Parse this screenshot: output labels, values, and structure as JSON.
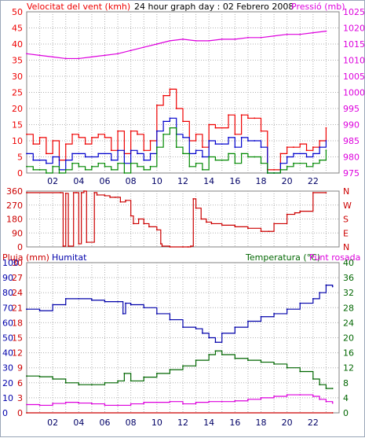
{
  "colors": {
    "wind": "#ee0000",
    "wind_avg": "#0000cc",
    "wind_green": "#008800",
    "pressure": "#dd00dd",
    "direction": "#cc0000",
    "rain": "#cc0000",
    "humidity": "#0000aa",
    "temperature": "#006600",
    "dewpoint": "#dd00dd",
    "grid": "#b0b0b0",
    "frame": "#808080"
  },
  "chart_data": [
    {
      "type": "line",
      "title": "24 hour graph day : 02 Febrero 2008",
      "ylabel": "Velocitat del vent (kmh)",
      "ylabel_right": "Pressió (mb)",
      "y_ticks_left": [
        "50",
        "45",
        "40",
        "35",
        "30",
        "25",
        "20",
        "15",
        "10",
        "5",
        "0"
      ],
      "y_ticks_right": [
        "1025",
        "1020",
        "1015",
        "1010",
        "1005",
        "1000",
        "995",
        "990",
        "985",
        "980",
        "975"
      ],
      "x_ticks": [
        "02",
        "04",
        "06",
        "08",
        "10",
        "12",
        "14",
        "16",
        "18",
        "20",
        "22"
      ],
      "ylim": [
        0,
        50
      ],
      "ylim_right": [
        975,
        1025
      ],
      "xlim": [
        0,
        24
      ],
      "grid": true,
      "series": [
        {
          "key": "wind_gust",
          "axis": "left",
          "x": [
            0,
            0.5,
            1,
            1.5,
            2,
            2.5,
            3,
            3.5,
            4,
            4.5,
            5,
            5.5,
            6,
            6.5,
            7,
            7.5,
            8,
            8.5,
            9,
            9.5,
            10,
            10.5,
            11,
            11.5,
            12,
            12.5,
            13,
            13.5,
            14,
            14.5,
            15,
            15.5,
            16,
            16.5,
            17,
            17.5,
            18,
            18.5,
            19,
            19.5,
            20,
            20.5,
            21,
            21.5,
            22,
            22.5,
            23
          ],
          "values": [
            12,
            9,
            11,
            6,
            10,
            4,
            9,
            12,
            11,
            9,
            11,
            12,
            11,
            7,
            13,
            6,
            13,
            12,
            7,
            10,
            21,
            24,
            26,
            20,
            16,
            10,
            12,
            8,
            15,
            14,
            14,
            18,
            12,
            18,
            17,
            17,
            13,
            1,
            1,
            6,
            8,
            8,
            9,
            7,
            8,
            10,
            14
          ]
        },
        {
          "key": "wind_avg",
          "axis": "left",
          "x": [
            0,
            0.5,
            1,
            1.5,
            2,
            2.5,
            3,
            3.5,
            4,
            4.5,
            5,
            5.5,
            6,
            6.5,
            7,
            7.5,
            8,
            8.5,
            9,
            9.5,
            10,
            10.5,
            11,
            11.5,
            12,
            12.5,
            13,
            13.5,
            14,
            14.5,
            15,
            15.5,
            16,
            16.5,
            17,
            17.5,
            18,
            18.5,
            19,
            19.5,
            20,
            20.5,
            21,
            21.5,
            22,
            22.5,
            23
          ],
          "values": [
            6,
            4,
            4,
            3,
            5,
            1,
            4,
            6,
            6,
            5,
            5,
            6,
            6,
            4,
            7,
            3,
            7,
            6,
            4,
            6,
            13,
            16,
            17,
            12,
            11,
            6,
            7,
            5,
            10,
            9,
            9,
            11,
            8,
            11,
            10,
            10,
            8,
            0,
            0,
            3,
            5,
            6,
            6,
            5,
            6,
            8,
            10
          ]
        },
        {
          "key": "wind_green",
          "axis": "left",
          "x": [
            0,
            0.5,
            1,
            1.5,
            2,
            2.5,
            3,
            3.5,
            4,
            4.5,
            5,
            5.5,
            6,
            6.5,
            7,
            7.5,
            8,
            8.5,
            9,
            9.5,
            10,
            10.5,
            11,
            11.5,
            12,
            12.5,
            13,
            13.5,
            14,
            14.5,
            15,
            15.5,
            16,
            16.5,
            17,
            17.5,
            18,
            18.5,
            19,
            19.5,
            20,
            20.5,
            21,
            21.5,
            22,
            22.5,
            23
          ],
          "values": [
            2,
            1,
            1,
            0,
            2,
            0,
            1,
            3,
            2,
            1,
            2,
            3,
            2,
            1,
            3,
            0,
            3,
            2,
            1,
            2,
            8,
            12,
            14,
            8,
            6,
            2,
            3,
            1,
            5,
            4,
            4,
            6,
            3,
            6,
            5,
            5,
            3,
            0,
            0,
            1,
            2,
            3,
            3,
            2,
            3,
            4,
            7
          ]
        },
        {
          "key": "pressure",
          "axis": "right",
          "x": [
            0,
            1,
            2,
            3,
            4,
            5,
            6,
            7,
            8,
            9,
            10,
            11,
            12,
            13,
            14,
            15,
            16,
            17,
            18,
            19,
            20,
            21,
            22,
            23
          ],
          "values": [
            1012,
            1011.5,
            1011,
            1010.5,
            1010.5,
            1011,
            1011.5,
            1012,
            1013,
            1014,
            1015,
            1016,
            1016.5,
            1016,
            1016,
            1016.5,
            1016.5,
            1017,
            1017,
            1017.5,
            1018,
            1018,
            1018.5,
            1019
          ]
        }
      ]
    },
    {
      "type": "line",
      "y_ticks_left": [
        "360",
        "270",
        "180",
        "90",
        "0"
      ],
      "y_ticks_right": [
        "N",
        "W",
        "S",
        "E",
        "N"
      ],
      "ylim": [
        0,
        360
      ],
      "xlim": [
        0,
        24
      ],
      "grid": true,
      "series": [
        {
          "key": "direction",
          "axis": "left",
          "x": [
            0,
            2.6,
            2.8,
            3.0,
            3.2,
            3.6,
            3.8,
            4.0,
            4.2,
            4.4,
            4.6,
            5.2,
            5.4,
            6.0,
            6.4,
            6.8,
            7.2,
            7.6,
            8.0,
            8.2,
            8.6,
            9.0,
            9.4,
            10.0,
            10.3,
            10.4,
            11.0,
            12.0,
            12.4,
            12.6,
            12.8,
            13.0,
            13.4,
            13.8,
            14.2,
            15.0,
            16.0,
            17.0,
            18.0,
            18.6,
            19.0,
            20.0,
            20.6,
            21.0,
            22.0,
            23.0
          ],
          "values": [
            350,
            350,
            5,
            345,
            5,
            350,
            350,
            20,
            350,
            360,
            30,
            350,
            335,
            330,
            320,
            320,
            290,
            300,
            200,
            150,
            180,
            150,
            130,
            110,
            20,
            5,
            0,
            0,
            0,
            5,
            310,
            250,
            180,
            160,
            150,
            140,
            130,
            120,
            100,
            100,
            150,
            210,
            220,
            230,
            350,
            350
          ]
        }
      ]
    },
    {
      "type": "line",
      "ylabel": "Pluja (mm)",
      "ylabel2": "Humitat",
      "ylabel_right": "Temperatura (°C)",
      "ylabel_right2": "Punt rosada",
      "y_ticks_left_rain": [
        "30",
        "27",
        "24",
        "21",
        "18",
        "15",
        "12",
        "9",
        "6",
        "3",
        "0"
      ],
      "y_ticks_left_hum": [
        "100",
        "90",
        "80",
        "70",
        "60",
        "50",
        "40",
        "30",
        "20",
        "10",
        "0"
      ],
      "y_ticks_right": [
        "40",
        "36",
        "32",
        "28",
        "24",
        "20",
        "16",
        "12",
        "8",
        "4",
        "0"
      ],
      "x_ticks": [
        "02",
        "04",
        "06",
        "08",
        "10",
        "12",
        "14",
        "16",
        "18",
        "20",
        "22"
      ],
      "ylim": [
        0,
        100
      ],
      "ylim_right": [
        0,
        40
      ],
      "xlim": [
        0,
        24
      ],
      "grid": true,
      "series": [
        {
          "key": "rain",
          "axis": "rain",
          "x": [
            0,
            23.5
          ],
          "values": [
            0,
            0
          ]
        },
        {
          "key": "humidity",
          "axis": "left",
          "x": [
            0,
            1,
            2,
            3,
            4,
            5,
            6,
            7,
            7.4,
            7.6,
            8,
            9,
            10,
            11,
            12,
            13,
            13.5,
            14,
            14.5,
            15,
            16,
            17,
            18,
            19,
            20,
            21,
            22,
            22.5,
            23,
            23.5
          ],
          "values": [
            69,
            68,
            72,
            76,
            76,
            75,
            74,
            74,
            66,
            73,
            72,
            70,
            66,
            62,
            57,
            56,
            53,
            50,
            47,
            53,
            57,
            61,
            64,
            66,
            69,
            73,
            76,
            80,
            85,
            84
          ]
        },
        {
          "key": "temperature",
          "axis": "right",
          "x": [
            0,
            1,
            2,
            3,
            4,
            5,
            6,
            7,
            7.5,
            8,
            9,
            10,
            11,
            12,
            13,
            14,
            14.5,
            15,
            16,
            17,
            18,
            19,
            20,
            21,
            22,
            22.5,
            23,
            23.5
          ],
          "values": [
            9.8,
            9.6,
            9,
            8,
            7.5,
            7.5,
            8,
            8.5,
            10.5,
            8.5,
            9.5,
            10.5,
            11.5,
            12.5,
            14,
            15.5,
            16.5,
            15.5,
            14.5,
            14,
            13.5,
            13,
            12,
            11,
            9,
            7.5,
            6.5,
            6.5
          ]
        },
        {
          "key": "dewpoint",
          "axis": "right",
          "x": [
            0,
            1,
            2,
            3,
            4,
            5,
            6,
            7,
            8,
            9,
            10,
            11,
            12,
            13,
            14,
            15,
            16,
            17,
            18,
            19,
            20,
            21,
            22,
            22.5,
            23,
            23.5
          ],
          "values": [
            2.2,
            2,
            2.5,
            2.8,
            2.6,
            2.4,
            2,
            2,
            2.4,
            2.8,
            2.8,
            3,
            2.4,
            2.8,
            3,
            3,
            3.2,
            3.6,
            4,
            4.4,
            4.8,
            4.8,
            4.4,
            3.6,
            3,
            2.6
          ]
        }
      ]
    }
  ]
}
